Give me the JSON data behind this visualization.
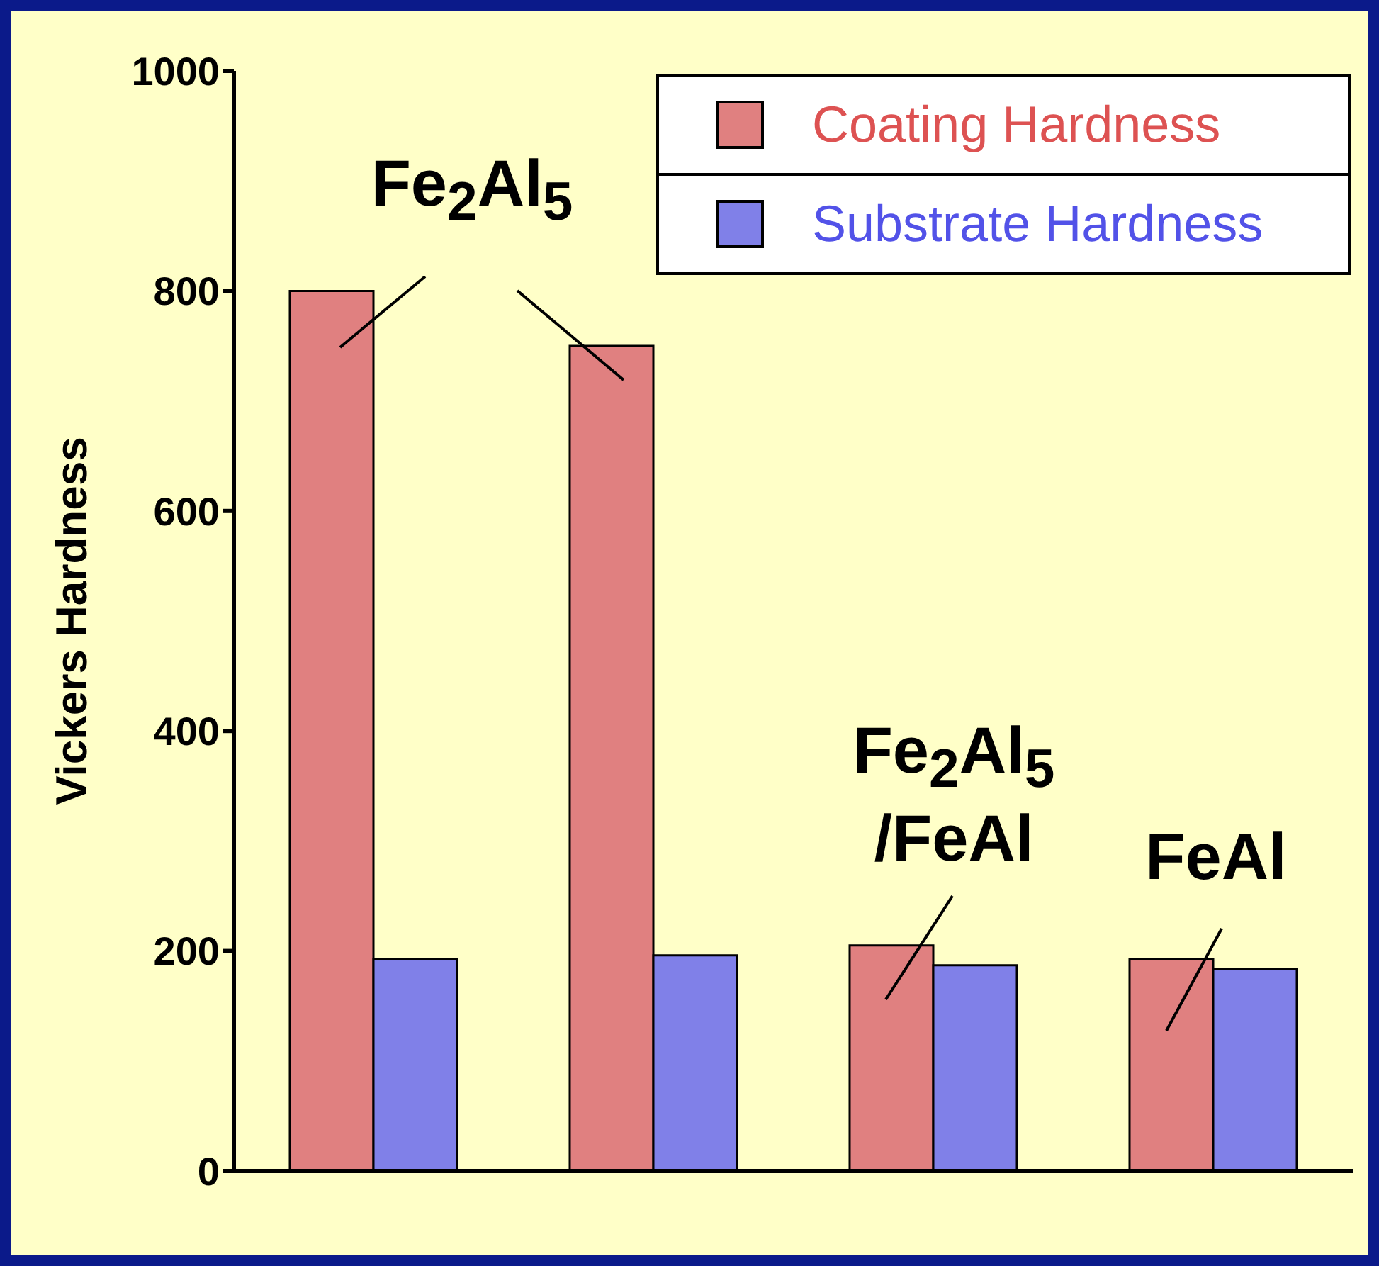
{
  "chart_data": {
    "type": "bar",
    "ylabel": "Vickers Hardness",
    "categories": [
      null,
      null,
      null,
      null
    ],
    "series": [
      {
        "name": "Coating Hardness",
        "color": "#e08080",
        "values": [
          800,
          750,
          205,
          193
        ]
      },
      {
        "name": "Substrate Hardness",
        "color": "#8080e8",
        "values": [
          193,
          196,
          187,
          184
        ]
      }
    ],
    "ylim": [
      0,
      1000
    ],
    "yticks": [
      0,
      200,
      400,
      600,
      800,
      1000
    ],
    "grid": false,
    "legend": "top right",
    "annotations": [
      "Fe$_{2}$Al$_{5}$",
      "Fe$_{2}$Al$_{5}$ /FeAl",
      "FeAl"
    ]
  }
}
